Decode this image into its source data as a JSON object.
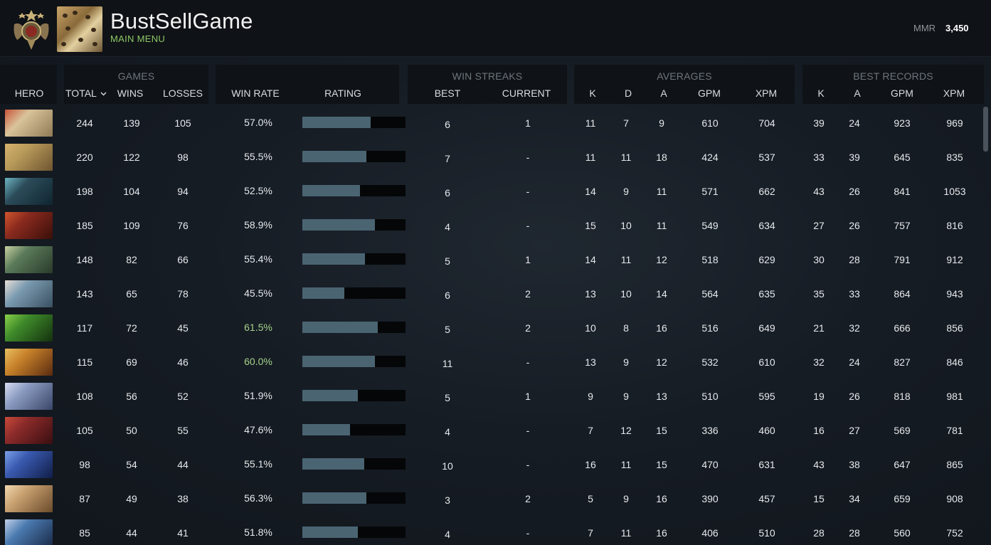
{
  "header": {
    "player_name": "BustSellGame",
    "main_menu": "MAIN MENU",
    "mmr_label": "MMR",
    "mmr_value": "3,450"
  },
  "columns": {
    "hero": "HERO",
    "games_group": "GAMES",
    "total": "TOTAL",
    "wins": "WINS",
    "losses": "LOSSES",
    "win_rate": "WIN RATE",
    "rating": "RATING",
    "streaks_group": "WIN STREAKS",
    "best": "BEST",
    "current": "CURRENT",
    "averages_group": "AVERAGES",
    "k": "K",
    "d": "D",
    "a": "A",
    "gpm": "GPM",
    "xpm": "XPM",
    "records_group": "BEST RECORDS",
    "rk": "K",
    "ra": "A",
    "rgpm": "GPM",
    "rxpm": "XPM"
  },
  "colors": {
    "accent_green": "#8cc866",
    "rating_bar": "#4a6472",
    "win_rate_high": "#a4d18a"
  },
  "rows": [
    {
      "total": "244",
      "wins": "139",
      "losses": "105",
      "win_rate": "57.0%",
      "rating": 0.66,
      "best": "6",
      "current": "1",
      "k": "11",
      "d": "7",
      "a": "9",
      "gpm": "610",
      "xpm": "704",
      "rk": "39",
      "ra": "24",
      "rgpm": "923",
      "rxpm": "969",
      "portrait": [
        "#d9c39a",
        "#8f7a55",
        "#c8553a"
      ]
    },
    {
      "total": "220",
      "wins": "122",
      "losses": "98",
      "win_rate": "55.5%",
      "rating": 0.62,
      "best": "7",
      "current": "-",
      "k": "11",
      "d": "11",
      "a": "18",
      "gpm": "424",
      "xpm": "537",
      "rk": "33",
      "ra": "39",
      "rgpm": "645",
      "rxpm": "835",
      "portrait": [
        "#b89a5a",
        "#6e5530",
        "#d6b26e"
      ]
    },
    {
      "total": "198",
      "wins": "104",
      "losses": "94",
      "win_rate": "52.5%",
      "rating": 0.56,
      "best": "6",
      "current": "-",
      "k": "14",
      "d": "9",
      "a": "11",
      "gpm": "571",
      "xpm": "662",
      "rk": "43",
      "ra": "26",
      "rgpm": "841",
      "rxpm": "1053",
      "portrait": [
        "#2c4c5a",
        "#0f2530",
        "#6fb5c2"
      ]
    },
    {
      "total": "185",
      "wins": "109",
      "losses": "76",
      "win_rate": "58.9%",
      "rating": 0.7,
      "best": "4",
      "current": "-",
      "k": "15",
      "d": "10",
      "a": "11",
      "gpm": "549",
      "xpm": "634",
      "rk": "27",
      "ra": "26",
      "rgpm": "757",
      "rxpm": "816",
      "portrait": [
        "#8a2a1e",
        "#3a0f0a",
        "#d0542e"
      ]
    },
    {
      "total": "148",
      "wins": "82",
      "losses": "66",
      "win_rate": "55.4%",
      "rating": 0.61,
      "best": "5",
      "current": "1",
      "k": "14",
      "d": "11",
      "a": "12",
      "gpm": "518",
      "xpm": "629",
      "rk": "30",
      "ra": "28",
      "rgpm": "791",
      "rxpm": "912",
      "portrait": [
        "#5a7a5a",
        "#2a3a2a",
        "#c8d0a0"
      ]
    },
    {
      "total": "143",
      "wins": "65",
      "losses": "78",
      "win_rate": "45.5%",
      "rating": 0.41,
      "best": "6",
      "current": "2",
      "k": "13",
      "d": "10",
      "a": "14",
      "gpm": "564",
      "xpm": "635",
      "rk": "35",
      "ra": "33",
      "rgpm": "864",
      "rxpm": "943",
      "portrait": [
        "#7a9ab0",
        "#3a5060",
        "#e8e0d8"
      ]
    },
    {
      "total": "117",
      "wins": "72",
      "losses": "45",
      "win_rate": "61.5%",
      "rating": 0.73,
      "best": "5",
      "current": "2",
      "k": "10",
      "d": "8",
      "a": "16",
      "gpm": "516",
      "xpm": "649",
      "rk": "21",
      "ra": "32",
      "rgpm": "666",
      "rxpm": "856",
      "portrait": [
        "#3e8a2a",
        "#14300e",
        "#8ad04a"
      ],
      "highlight": true
    },
    {
      "total": "115",
      "wins": "69",
      "losses": "46",
      "win_rate": "60.0%",
      "rating": 0.7,
      "best": "11",
      "current": "-",
      "k": "13",
      "d": "9",
      "a": "12",
      "gpm": "532",
      "xpm": "610",
      "rk": "32",
      "ra": "24",
      "rgpm": "827",
      "rxpm": "846",
      "portrait": [
        "#c8822a",
        "#5a2a10",
        "#e8c060"
      ],
      "highlight": true
    },
    {
      "total": "108",
      "wins": "56",
      "losses": "52",
      "win_rate": "51.9%",
      "rating": 0.54,
      "best": "5",
      "current": "1",
      "k": "9",
      "d": "9",
      "a": "13",
      "gpm": "510",
      "xpm": "595",
      "rk": "19",
      "ra": "26",
      "rgpm": "818",
      "rxpm": "981",
      "portrait": [
        "#8a9ac0",
        "#3a4668",
        "#d8dcf0"
      ]
    },
    {
      "total": "105",
      "wins": "50",
      "losses": "55",
      "win_rate": "47.6%",
      "rating": 0.46,
      "best": "4",
      "current": "-",
      "k": "7",
      "d": "12",
      "a": "15",
      "gpm": "336",
      "xpm": "460",
      "rk": "16",
      "ra": "27",
      "rgpm": "569",
      "rxpm": "781",
      "portrait": [
        "#8a2a2a",
        "#3a0e10",
        "#c84a3a"
      ]
    },
    {
      "total": "98",
      "wins": "54",
      "losses": "44",
      "win_rate": "55.1%",
      "rating": 0.6,
      "best": "10",
      "current": "-",
      "k": "16",
      "d": "11",
      "a": "15",
      "gpm": "470",
      "xpm": "631",
      "rk": "43",
      "ra": "38",
      "rgpm": "647",
      "rxpm": "865",
      "portrait": [
        "#3a5ab0",
        "#101e48",
        "#7aa0e8"
      ]
    },
    {
      "total": "87",
      "wins": "49",
      "losses": "38",
      "win_rate": "56.3%",
      "rating": 0.62,
      "best": "3",
      "current": "2",
      "k": "5",
      "d": "9",
      "a": "16",
      "gpm": "390",
      "xpm": "457",
      "rk": "15",
      "ra": "34",
      "rgpm": "659",
      "rxpm": "908",
      "portrait": [
        "#c8a070",
        "#6a4a2a",
        "#f0d8b0"
      ]
    },
    {
      "total": "85",
      "wins": "44",
      "losses": "41",
      "win_rate": "51.8%",
      "rating": 0.54,
      "best": "4",
      "current": "-",
      "k": "7",
      "d": "11",
      "a": "16",
      "gpm": "406",
      "xpm": "510",
      "rk": "28",
      "ra": "28",
      "rgpm": "560",
      "rxpm": "752",
      "portrait": [
        "#4a7ab0",
        "#1a2a48",
        "#c0d0e8"
      ]
    }
  ]
}
